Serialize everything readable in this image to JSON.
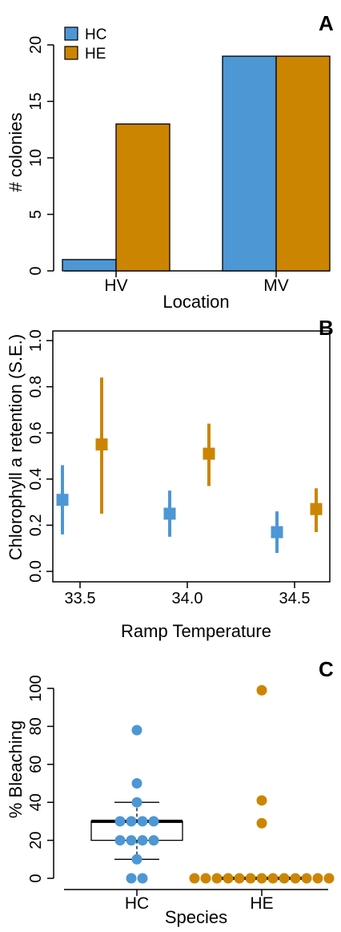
{
  "colors": {
    "HC": "#4d97d5",
    "HE": "#cc8500"
  },
  "chart_data": [
    {
      "panel": "A",
      "type": "bar",
      "xlabel": "Location",
      "ylabel": "# colonies",
      "categories": [
        "HV",
        "MV"
      ],
      "series": [
        {
          "name": "HC",
          "values": [
            1,
            19
          ]
        },
        {
          "name": "HE",
          "values": [
            13,
            19
          ]
        }
      ],
      "ylim": [
        0,
        20
      ],
      "yticks": [
        "0",
        "5",
        "10",
        "15",
        "20"
      ],
      "legend": "top-left",
      "grid": false
    },
    {
      "panel": "B",
      "type": "scatter",
      "xlabel": "Ramp Temperature",
      "ylabel": "Chlorophyll a retention (S.E.)",
      "xticks": [
        "33.5",
        "34.0",
        "34.5"
      ],
      "ylim": [
        0,
        1
      ],
      "yticks": [
        "0.0",
        "0.2",
        "0.4",
        "0.6",
        "0.8",
        "1.0"
      ],
      "series": [
        {
          "name": "HC",
          "points": [
            {
              "x": 33.5,
              "y": 0.31,
              "lo": 0.16,
              "hi": 0.46
            },
            {
              "x": 34.0,
              "y": 0.25,
              "lo": 0.15,
              "hi": 0.35
            },
            {
              "x": 34.5,
              "y": 0.17,
              "lo": 0.08,
              "hi": 0.26
            }
          ]
        },
        {
          "name": "HE",
          "points": [
            {
              "x": 33.5,
              "y": 0.55,
              "lo": 0.25,
              "hi": 0.84
            },
            {
              "x": 34.0,
              "y": 0.51,
              "lo": 0.37,
              "hi": 0.64
            },
            {
              "x": 34.5,
              "y": 0.27,
              "lo": 0.17,
              "hi": 0.36
            }
          ]
        }
      ],
      "grid": false
    },
    {
      "panel": "C",
      "type": "box",
      "xlabel": "Species",
      "ylabel": "% Bleaching",
      "categories": [
        "HC",
        "HE"
      ],
      "ylim": [
        0,
        100
      ],
      "yticks": [
        "0",
        "20",
        "40",
        "60",
        "80",
        "100"
      ],
      "boxes": [
        {
          "name": "HC",
          "lower_whisker": 10,
          "q1": 20,
          "median": 30,
          "q3": 30,
          "upper_whisker": 40
        },
        {
          "name": "HE",
          "lower_whisker": 0,
          "q1": 0,
          "median": 0,
          "q3": 0,
          "upper_whisker": 0
        }
      ],
      "points": [
        {
          "name": "HC",
          "values": [
            0,
            0,
            10,
            20,
            20,
            20,
            20,
            30,
            30,
            30,
            30,
            40,
            50,
            78
          ]
        },
        {
          "name": "HE",
          "values": [
            0,
            0,
            0,
            0,
            0,
            0,
            0,
            0,
            0,
            0,
            0,
            0,
            0,
            29,
            41,
            99
          ]
        }
      ],
      "grid": false
    }
  ]
}
